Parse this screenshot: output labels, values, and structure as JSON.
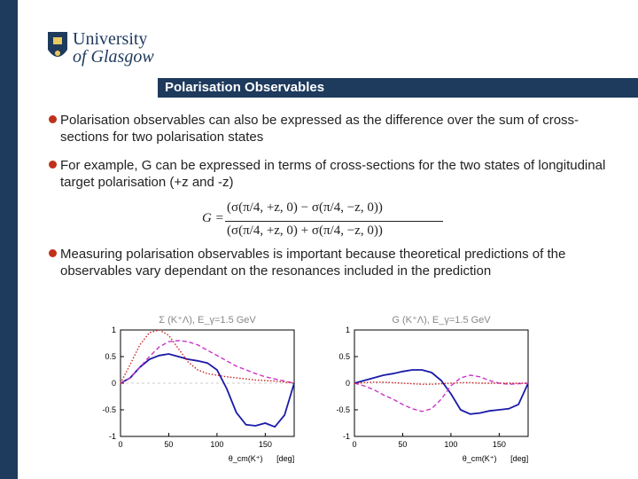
{
  "header": {
    "university_line1": "University",
    "university_line2": "of Glasgow",
    "title": "Polarisation Observables"
  },
  "bullets": [
    {
      "text": "Polarisation observables can also be expressed as the difference over the sum of cross-sections for two polarisation states"
    },
    {
      "text": "For example, G can be expressed in terms of cross-sections for the two states of longitudinal target polarisation (+z and -z)"
    },
    {
      "text": "Measuring polarisation observables is important because theoretical predictions of the observables vary dependant on the resonances included in the prediction"
    }
  ],
  "formula": {
    "lhs": "G =",
    "numerator": "(σ(π/4, +z, 0) − σ(π/4, −z, 0))",
    "denominator": "(σ(π/4, +z, 0) + σ(π/4, −z, 0))"
  },
  "colors": {
    "navy": "#1e3a5c",
    "bullet": "#c0301a",
    "blue": "#1a1aa8",
    "magenta": "#cc33cc",
    "red": "#cc2222"
  },
  "chart_data": [
    {
      "type": "line",
      "title": "Σ (K⁺Λ),  E_γ=1.5 GeV",
      "xlabel": "θ_cm(K⁺)",
      "xunit": "[deg]",
      "xlim": [
        0,
        180
      ],
      "ylim": [
        -1,
        1
      ],
      "xticks": [
        "0",
        "50",
        "100",
        "150"
      ],
      "yticks": [
        "1",
        "0.5",
        "0",
        "-0.5",
        "-1"
      ],
      "series": [
        {
          "style": "solid",
          "color": "#1a1aa8",
          "x": [
            0,
            10,
            20,
            30,
            40,
            50,
            60,
            70,
            80,
            90,
            100,
            110,
            120,
            130,
            140,
            150,
            160,
            170,
            180
          ],
          "y": [
            0,
            0.1,
            0.3,
            0.45,
            0.52,
            0.55,
            0.5,
            0.45,
            0.42,
            0.38,
            0.25,
            -0.1,
            -0.55,
            -0.78,
            -0.8,
            -0.75,
            -0.82,
            -0.6,
            0
          ]
        },
        {
          "style": "dashed",
          "color": "#cc33cc",
          "x": [
            0,
            10,
            20,
            30,
            40,
            50,
            60,
            70,
            80,
            90,
            100,
            110,
            120,
            130,
            140,
            150,
            160,
            170,
            180
          ],
          "y": [
            0,
            0.1,
            0.3,
            0.5,
            0.68,
            0.78,
            0.8,
            0.78,
            0.72,
            0.62,
            0.52,
            0.42,
            0.32,
            0.25,
            0.18,
            0.12,
            0.08,
            0.04,
            0
          ]
        },
        {
          "style": "dotted",
          "color": "#cc2222",
          "x": [
            0,
            10,
            20,
            30,
            40,
            50,
            60,
            70,
            80,
            90,
            100,
            110,
            120,
            130,
            140,
            150,
            160,
            170,
            180
          ],
          "y": [
            0,
            0.35,
            0.72,
            0.95,
            1.0,
            0.9,
            0.65,
            0.4,
            0.25,
            0.18,
            0.15,
            0.12,
            0.1,
            0.08,
            0.06,
            0.05,
            0.04,
            0.02,
            0
          ]
        }
      ]
    },
    {
      "type": "line",
      "title": "G (K⁺Λ),  E_γ=1.5 GeV",
      "xlabel": "θ_cm(K⁺)",
      "xunit": "[deg]",
      "xlim": [
        0,
        180
      ],
      "ylim": [
        -1,
        1
      ],
      "xticks": [
        "0",
        "50",
        "100",
        "150"
      ],
      "yticks": [
        "1",
        "0.5",
        "0",
        "-0.5",
        "-1"
      ],
      "series": [
        {
          "style": "solid",
          "color": "#1a1aa8",
          "x": [
            0,
            10,
            20,
            30,
            40,
            50,
            60,
            70,
            80,
            90,
            100,
            110,
            120,
            130,
            140,
            150,
            160,
            170,
            180
          ],
          "y": [
            0,
            0.05,
            0.1,
            0.15,
            0.18,
            0.22,
            0.25,
            0.25,
            0.2,
            0.05,
            -0.2,
            -0.5,
            -0.58,
            -0.56,
            -0.52,
            -0.5,
            -0.48,
            -0.4,
            0
          ]
        },
        {
          "style": "dashed",
          "color": "#cc33cc",
          "x": [
            0,
            10,
            20,
            30,
            40,
            50,
            60,
            70,
            80,
            90,
            100,
            110,
            120,
            130,
            140,
            150,
            160,
            170,
            180
          ],
          "y": [
            0,
            -0.05,
            -0.12,
            -0.22,
            -0.3,
            -0.4,
            -0.48,
            -0.53,
            -0.48,
            -0.3,
            -0.05,
            0.1,
            0.15,
            0.12,
            0.05,
            0.0,
            -0.02,
            -0.01,
            0
          ]
        },
        {
          "style": "dotted",
          "color": "#cc2222",
          "x": [
            0,
            10,
            20,
            30,
            40,
            50,
            60,
            70,
            80,
            90,
            100,
            110,
            120,
            130,
            140,
            150,
            160,
            170,
            180
          ],
          "y": [
            0,
            0.01,
            0.02,
            0.02,
            0.01,
            0,
            -0.01,
            -0.02,
            -0.02,
            -0.01,
            0,
            0.01,
            0.01,
            0,
            0,
            0,
            0,
            0,
            0
          ]
        }
      ]
    }
  ]
}
